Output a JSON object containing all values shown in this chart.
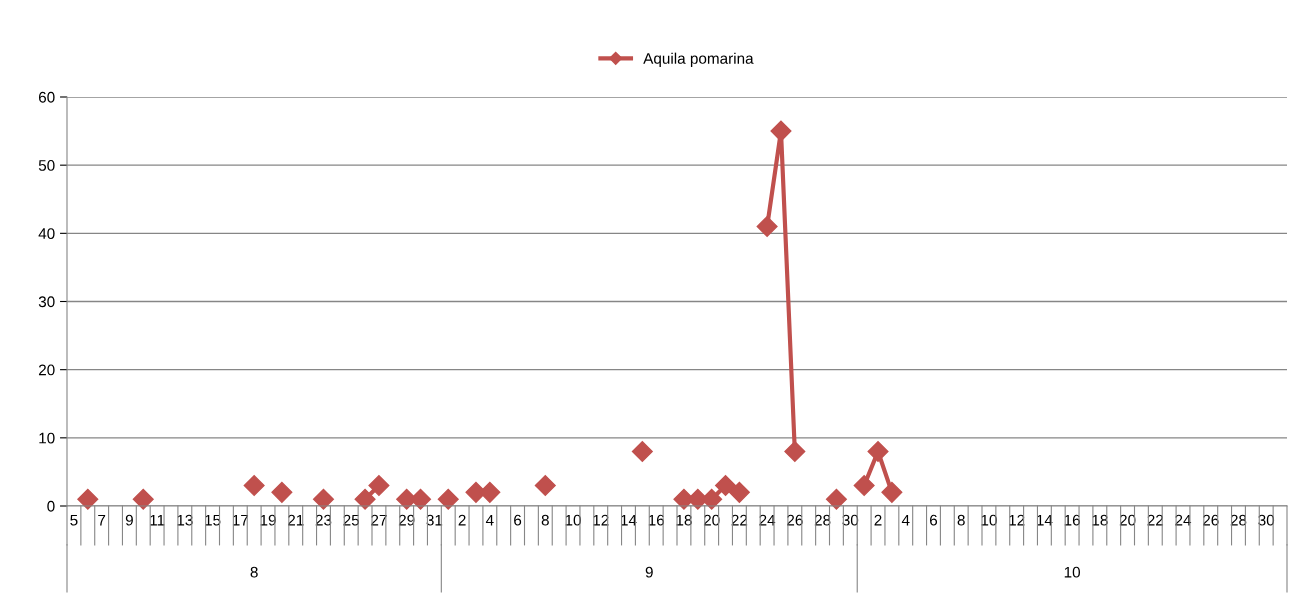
{
  "chart_data": {
    "type": "line",
    "categories": [
      "5",
      null,
      "7",
      null,
      "9",
      null,
      "11",
      null,
      "13",
      null,
      "15",
      null,
      "17",
      null,
      "19",
      null,
      "21",
      null,
      "23",
      null,
      "25",
      null,
      "27",
      null,
      "29",
      null,
      "31",
      null,
      "2",
      null,
      "4",
      null,
      "6",
      null,
      "8",
      null,
      "10",
      null,
      "12",
      null,
      "14",
      null,
      "16",
      null,
      "18",
      null,
      "20",
      null,
      "22",
      null,
      "24",
      null,
      "26",
      null,
      "28",
      null,
      "30",
      null,
      "2",
      null,
      "4",
      null,
      "6",
      null,
      "8",
      null,
      "10",
      null,
      "12",
      null,
      "14",
      null,
      "16",
      null,
      "18",
      null,
      "20",
      null,
      "22",
      null,
      "24",
      null,
      "26",
      null,
      "28",
      null,
      "30",
      null
    ],
    "series": [
      {
        "name": "Aquila pomarina",
        "color": "#c0504d",
        "values": [
          null,
          1,
          null,
          null,
          null,
          1,
          null,
          null,
          null,
          null,
          null,
          null,
          null,
          3,
          null,
          2,
          null,
          null,
          1,
          null,
          null,
          1,
          3,
          null,
          1,
          1,
          null,
          1,
          null,
          2,
          2,
          null,
          null,
          null,
          3,
          null,
          null,
          null,
          null,
          null,
          null,
          8,
          null,
          null,
          1,
          1,
          1,
          3,
          2,
          null,
          41,
          55,
          8,
          null,
          null,
          1,
          null,
          3,
          8,
          2,
          null,
          null,
          null,
          null,
          null,
          null,
          null,
          null,
          null,
          null,
          null,
          null,
          null,
          null,
          null,
          null,
          null,
          null,
          null,
          null,
          null,
          null,
          null,
          null,
          null,
          null,
          null,
          null
        ]
      }
    ],
    "ylim": [
      0,
      60
    ],
    "yticks": [
      0,
      10,
      20,
      30,
      40,
      50,
      60
    ],
    "grid": "y",
    "legend": "top",
    "marker": "diamond",
    "line_style": "solid",
    "annotations": [
      "8",
      "9",
      "10"
    ]
  }
}
